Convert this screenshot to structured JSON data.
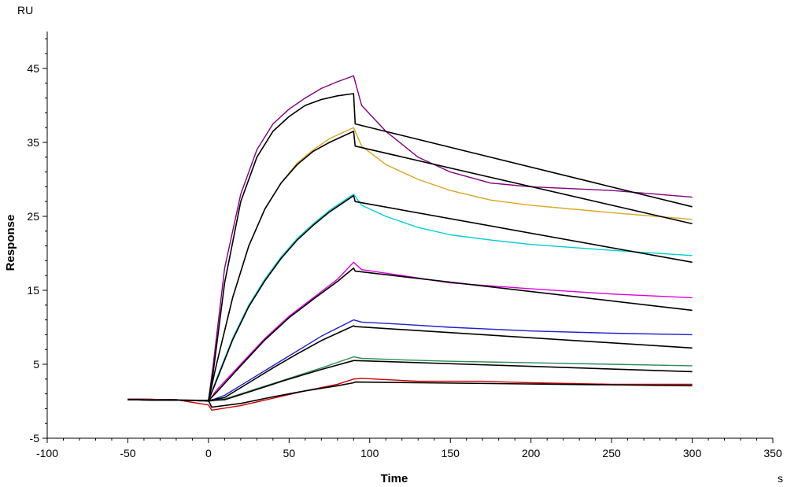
{
  "chart_data": {
    "type": "line",
    "title": "",
    "xlabel": "Time",
    "ylabel": "Response",
    "x_unit": "s",
    "y_unit": "RU",
    "xlim": [
      -100,
      350
    ],
    "ylim": [
      -5,
      50
    ],
    "x_ticks": [
      -100,
      -50,
      0,
      50,
      100,
      150,
      200,
      250,
      300,
      350
    ],
    "y_ticks": [
      -5,
      5,
      15,
      25,
      35,
      45
    ],
    "grid": false,
    "legend": "none",
    "series": [
      {
        "color": "#800080",
        "style": "measured",
        "points": [
          [
            -50,
            0.3
          ],
          [
            -20,
            0.2
          ],
          [
            0,
            0.1
          ],
          [
            3,
            5
          ],
          [
            10,
            18
          ],
          [
            20,
            28
          ],
          [
            30,
            34
          ],
          [
            40,
            37.5
          ],
          [
            50,
            39.5
          ],
          [
            60,
            41
          ],
          [
            70,
            42.3
          ],
          [
            80,
            43.2
          ],
          [
            90,
            44
          ],
          [
            95,
            40
          ],
          [
            110,
            36.5
          ],
          [
            130,
            33
          ],
          [
            150,
            31
          ],
          [
            175,
            29.5
          ],
          [
            200,
            29
          ],
          [
            250,
            28.5
          ],
          [
            300,
            27.6
          ]
        ]
      },
      {
        "color": "#DAA520",
        "style": "measured",
        "points": [
          [
            -50,
            0.3
          ],
          [
            -20,
            0.2
          ],
          [
            0,
            0
          ],
          [
            5,
            5
          ],
          [
            15,
            14
          ],
          [
            25,
            21
          ],
          [
            35,
            26
          ],
          [
            45,
            29.5
          ],
          [
            55,
            32.2
          ],
          [
            65,
            34
          ],
          [
            75,
            35.5
          ],
          [
            90,
            37
          ],
          [
            95,
            34.5
          ],
          [
            110,
            32
          ],
          [
            130,
            30
          ],
          [
            150,
            28.5
          ],
          [
            175,
            27.2
          ],
          [
            200,
            26.5
          ],
          [
            250,
            25.5
          ],
          [
            300,
            24.6
          ]
        ]
      },
      {
        "color": "#00CED1",
        "style": "measured",
        "points": [
          [
            -50,
            0.3
          ],
          [
            -20,
            0.2
          ],
          [
            0,
            0
          ],
          [
            5,
            3
          ],
          [
            15,
            8.5
          ],
          [
            25,
            13
          ],
          [
            35,
            16.5
          ],
          [
            45,
            19.5
          ],
          [
            55,
            22
          ],
          [
            65,
            24
          ],
          [
            75,
            25.8
          ],
          [
            90,
            28
          ],
          [
            95,
            26.5
          ],
          [
            110,
            25
          ],
          [
            130,
            23.5
          ],
          [
            150,
            22.5
          ],
          [
            175,
            21.8
          ],
          [
            200,
            21.2
          ],
          [
            250,
            20.4
          ],
          [
            300,
            19.7
          ]
        ]
      },
      {
        "color": "#DA00DA",
        "style": "measured",
        "points": [
          [
            -50,
            0.3
          ],
          [
            -20,
            0.2
          ],
          [
            0,
            0
          ],
          [
            5,
            1.5
          ],
          [
            20,
            5
          ],
          [
            35,
            8.5
          ],
          [
            50,
            11.5
          ],
          [
            65,
            14
          ],
          [
            80,
            16.5
          ],
          [
            90,
            18.8
          ],
          [
            95,
            17.8
          ],
          [
            120,
            17
          ],
          [
            150,
            16
          ],
          [
            200,
            15.2
          ],
          [
            250,
            14.5
          ],
          [
            300,
            14
          ]
        ]
      },
      {
        "color": "#1F1FCC",
        "style": "measured",
        "points": [
          [
            -50,
            0.3
          ],
          [
            -20,
            0.2
          ],
          [
            0,
            0
          ],
          [
            10,
            0.8
          ],
          [
            25,
            2.8
          ],
          [
            40,
            4.8
          ],
          [
            55,
            6.8
          ],
          [
            70,
            8.8
          ],
          [
            90,
            11
          ],
          [
            95,
            10.7
          ],
          [
            120,
            10.4
          ],
          [
            150,
            10
          ],
          [
            200,
            9.5
          ],
          [
            250,
            9.2
          ],
          [
            300,
            9
          ]
        ]
      },
      {
        "color": "#2E8B57",
        "style": "measured",
        "points": [
          [
            -50,
            0.3
          ],
          [
            -20,
            0.2
          ],
          [
            0,
            0
          ],
          [
            10,
            0.3
          ],
          [
            30,
            1.7
          ],
          [
            50,
            3.1
          ],
          [
            70,
            4.5
          ],
          [
            90,
            6
          ],
          [
            95,
            5.8
          ],
          [
            120,
            5.6
          ],
          [
            150,
            5.4
          ],
          [
            200,
            5.2
          ],
          [
            250,
            5
          ],
          [
            300,
            4.8
          ]
        ]
      },
      {
        "color": "#CC0000",
        "style": "measured",
        "points": [
          [
            -50,
            0.3
          ],
          [
            -20,
            0.2
          ],
          [
            0,
            -0.5
          ],
          [
            2,
            -1.2
          ],
          [
            20,
            -0.6
          ],
          [
            40,
            0.4
          ],
          [
            60,
            1.4
          ],
          [
            80,
            2.3
          ],
          [
            90,
            3
          ],
          [
            95,
            3.1
          ],
          [
            130,
            2.7
          ],
          [
            170,
            2.7
          ],
          [
            200,
            2.5
          ],
          [
            250,
            2.3
          ],
          [
            300,
            2.3
          ]
        ]
      },
      {
        "color": "#000000",
        "style": "fit",
        "points": [
          [
            -50,
            0.2
          ],
          [
            0,
            0.1
          ],
          [
            3,
            4
          ],
          [
            10,
            16
          ],
          [
            20,
            27
          ],
          [
            30,
            33
          ],
          [
            40,
            36.5
          ],
          [
            50,
            38.5
          ],
          [
            60,
            40
          ],
          [
            70,
            40.8
          ],
          [
            80,
            41.3
          ],
          [
            90,
            41.6
          ],
          [
            91,
            37.5
          ],
          [
            300,
            26.3
          ]
        ]
      },
      {
        "color": "#000000",
        "style": "fit",
        "points": [
          [
            -50,
            0.2
          ],
          [
            0,
            0.1
          ],
          [
            5,
            5
          ],
          [
            15,
            14
          ],
          [
            25,
            21
          ],
          [
            35,
            26
          ],
          [
            45,
            29.5
          ],
          [
            55,
            32
          ],
          [
            65,
            33.8
          ],
          [
            75,
            35
          ],
          [
            90,
            36.5
          ],
          [
            91,
            34.5
          ],
          [
            300,
            24
          ]
        ]
      },
      {
        "color": "#000000",
        "style": "fit",
        "points": [
          [
            -50,
            0.2
          ],
          [
            0,
            0.1
          ],
          [
            5,
            2.8
          ],
          [
            15,
            8.3
          ],
          [
            25,
            12.8
          ],
          [
            35,
            16.3
          ],
          [
            45,
            19.3
          ],
          [
            55,
            21.8
          ],
          [
            65,
            23.8
          ],
          [
            75,
            25.6
          ],
          [
            90,
            27.8
          ],
          [
            91,
            27
          ],
          [
            300,
            18.8
          ]
        ]
      },
      {
        "color": "#000000",
        "style": "fit",
        "points": [
          [
            -50,
            0.2
          ],
          [
            0,
            0.1
          ],
          [
            5,
            1.2
          ],
          [
            20,
            4.8
          ],
          [
            35,
            8.3
          ],
          [
            50,
            11.3
          ],
          [
            65,
            13.8
          ],
          [
            80,
            16.2
          ],
          [
            90,
            18
          ],
          [
            91,
            17.6
          ],
          [
            300,
            12.3
          ]
        ]
      },
      {
        "color": "#000000",
        "style": "fit",
        "points": [
          [
            -50,
            0.2
          ],
          [
            0,
            0.1
          ],
          [
            10,
            0.5
          ],
          [
            25,
            2.5
          ],
          [
            40,
            4.5
          ],
          [
            55,
            6.4
          ],
          [
            70,
            8.2
          ],
          [
            90,
            10.2
          ],
          [
            91,
            10.1
          ],
          [
            300,
            7.2
          ]
        ]
      },
      {
        "color": "#000000",
        "style": "fit",
        "points": [
          [
            -50,
            0.2
          ],
          [
            0,
            0.1
          ],
          [
            10,
            0.2
          ],
          [
            30,
            1.6
          ],
          [
            50,
            3
          ],
          [
            70,
            4.3
          ],
          [
            90,
            5.5
          ],
          [
            91,
            5.5
          ],
          [
            300,
            4
          ]
        ]
      },
      {
        "color": "#000000",
        "style": "fit",
        "points": [
          [
            -50,
            0.2
          ],
          [
            0,
            0.1
          ],
          [
            2,
            -0.8
          ],
          [
            20,
            -0.3
          ],
          [
            40,
            0.6
          ],
          [
            60,
            1.4
          ],
          [
            80,
            2.1
          ],
          [
            90,
            2.5
          ],
          [
            91,
            2.6
          ],
          [
            300,
            2.1
          ]
        ]
      }
    ]
  }
}
